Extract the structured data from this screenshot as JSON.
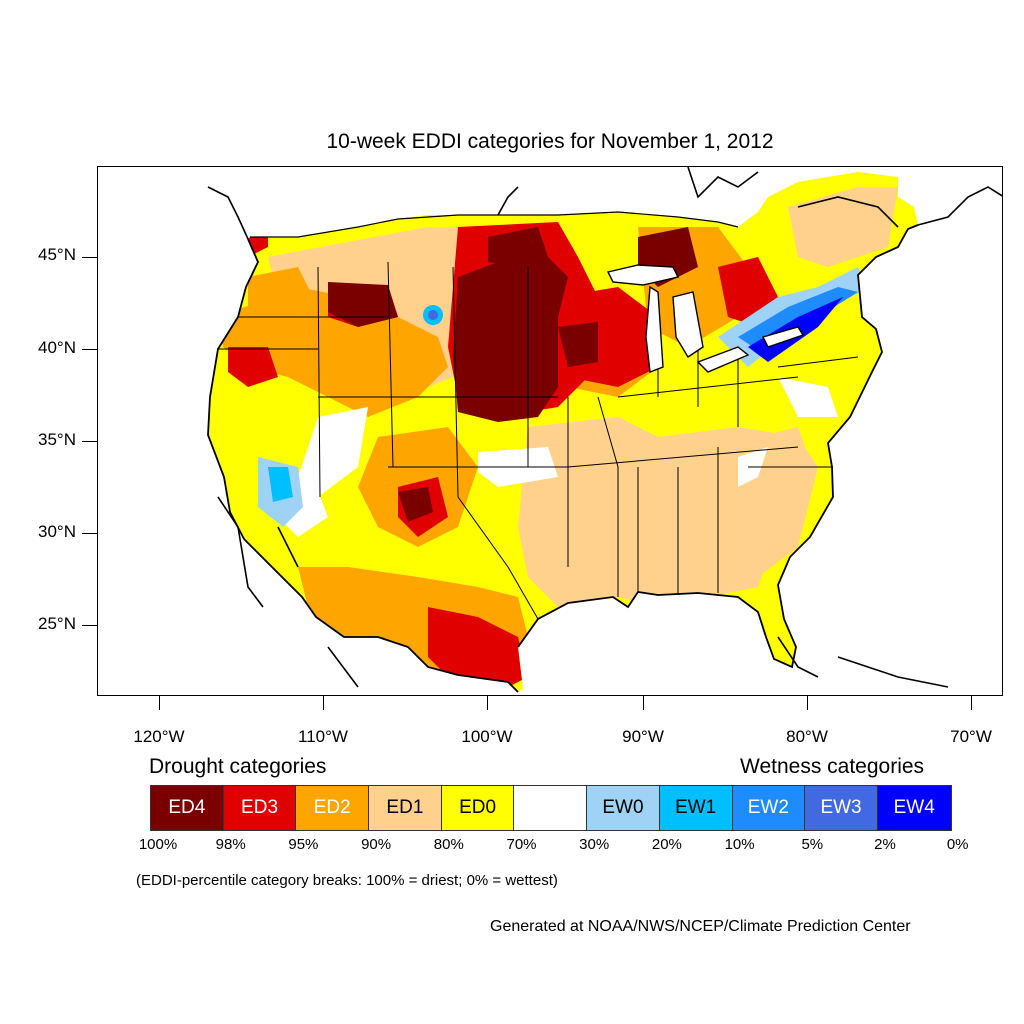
{
  "title": "10-week EDDI categories for November 1, 2012",
  "y_axis": {
    "ticks": [
      "45°N",
      "40°N",
      "35°N",
      "30°N",
      "25°N"
    ]
  },
  "x_axis": {
    "ticks": [
      "120°W",
      "110°W",
      "100°W",
      "90°W",
      "80°W",
      "70°W"
    ]
  },
  "legend": {
    "drought_heading": "Drought categories",
    "wetness_heading": "Wetness categories",
    "categories": [
      {
        "label": "ED4",
        "color": "#7a0000",
        "text_color": "#ffffff"
      },
      {
        "label": "ED3",
        "color": "#e00000",
        "text_color": "#ffffff"
      },
      {
        "label": "ED2",
        "color": "#ffa500",
        "text_color": "#ffffff"
      },
      {
        "label": "ED1",
        "color": "#ffd18c",
        "text_color": "#000000"
      },
      {
        "label": "ED0",
        "color": "#ffff00",
        "text_color": "#000000"
      },
      {
        "label": "",
        "color": "#ffffff",
        "text_color": "#000000"
      },
      {
        "label": "EW0",
        "color": "#9fd3f5",
        "text_color": "#000000"
      },
      {
        "label": "EW1",
        "color": "#00bfff",
        "text_color": "#000000"
      },
      {
        "label": "EW2",
        "color": "#1e8bff",
        "text_color": "#ffffff"
      },
      {
        "label": "EW3",
        "color": "#4169e1",
        "text_color": "#ffffff"
      },
      {
        "label": "EW4",
        "color": "#0000ff",
        "text_color": "#ffffff"
      }
    ],
    "breaks": [
      "100%",
      "98%",
      "95%",
      "90%",
      "80%",
      "70%",
      "30%",
      "20%",
      "10%",
      "5%",
      "2%",
      "0%"
    ]
  },
  "note": "(EDDI-percentile category breaks: 100% = driest; 0% = wettest)",
  "credit": "Generated at NOAA/NWS/NCEP/Climate Prediction Center"
}
